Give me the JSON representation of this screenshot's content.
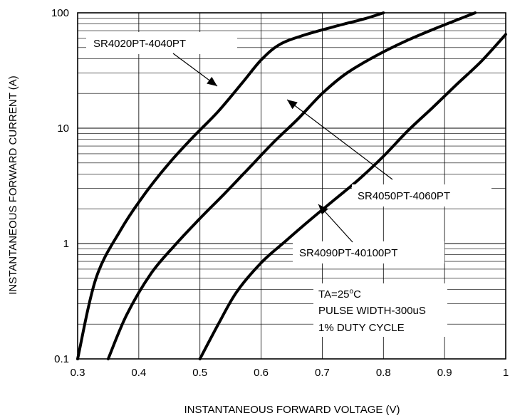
{
  "chart_data": {
    "type": "line",
    "xlabel": "INSTANTANEOUS FORWARD VOLTAGE (V)",
    "ylabel": "INSTANTANEOUS FORWARD CURRENT (A)",
    "xlim": [
      0.3,
      1.0
    ],
    "ylim": [
      0.1,
      100
    ],
    "y_scale": "log",
    "grid": true,
    "x_ticks": [
      "0.3",
      "0.4",
      "0.5",
      "0.6",
      "0.7",
      "0.8",
      "0.9",
      "1"
    ],
    "y_ticks": [
      "0.1",
      "1",
      "10",
      "100"
    ],
    "series": [
      {
        "name": "SR4020PT-4040PT",
        "x": [
          0.3,
          0.33,
          0.37,
          0.41,
          0.45,
          0.49,
          0.53,
          0.57,
          0.6,
          0.63,
          0.67,
          0.72,
          0.77,
          0.8
        ],
        "y": [
          0.1,
          0.5,
          1.3,
          2.7,
          5.0,
          8.5,
          14.0,
          25.0,
          39.0,
          53.0,
          64.0,
          76.0,
          89.0,
          100.0
        ]
      },
      {
        "name": "SR4050PT-4060PT",
        "x": [
          0.35,
          0.38,
          0.42,
          0.46,
          0.5,
          0.54,
          0.58,
          0.62,
          0.66,
          0.7,
          0.74,
          0.79,
          0.84,
          0.89,
          0.95
        ],
        "y": [
          0.1,
          0.24,
          0.55,
          0.98,
          1.65,
          2.7,
          4.5,
          7.5,
          12.0,
          20.0,
          30.0,
          43.0,
          58.0,
          75.0,
          100.0
        ]
      },
      {
        "name": "SR4090PT-40100PT",
        "x": [
          0.5,
          0.53,
          0.56,
          0.6,
          0.64,
          0.68,
          0.72,
          0.76,
          0.8,
          0.84,
          0.88,
          0.92,
          0.96,
          1.0
        ],
        "y": [
          0.1,
          0.2,
          0.38,
          0.68,
          1.05,
          1.6,
          2.4,
          3.6,
          5.7,
          9.5,
          15.0,
          24.0,
          38.0,
          65.0
        ]
      }
    ],
    "annotations": [
      {
        "text": "SR4020PT-4040PT"
      },
      {
        "text": "SR4050PT-4060PT"
      },
      {
        "text": "SR4090PT-40100PT"
      }
    ],
    "conditions": [
      {
        "label": "TA=25",
        "sup": "o",
        "unit": "C"
      },
      {
        "label": "PULSE WIDTH-300uS"
      },
      {
        "label": "1% DUTY CYCLE"
      }
    ]
  }
}
